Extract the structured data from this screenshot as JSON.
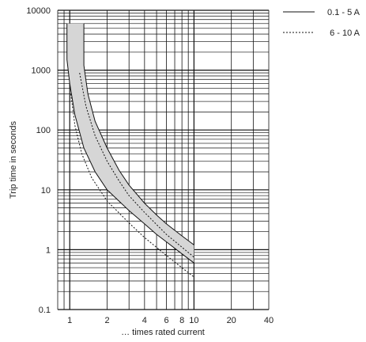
{
  "chart_data": {
    "type": "line",
    "title": "",
    "xlabel": "… times rated current",
    "ylabel": "Trip time in seconds",
    "x_scale": "log",
    "y_scale": "log",
    "xlim": [
      0.8,
      40
    ],
    "ylim": [
      0.1,
      10000
    ],
    "x_ticks": [
      {
        "value": 1,
        "label": "1"
      },
      {
        "value": 2,
        "label": "2"
      },
      {
        "value": 4,
        "label": "4"
      },
      {
        "value": 6,
        "label": "6"
      },
      {
        "value": 8,
        "label": "8"
      },
      {
        "value": 10,
        "label": "10"
      },
      {
        "value": 20,
        "label": "20"
      },
      {
        "value": 40,
        "label": "40"
      }
    ],
    "y_ticks": [
      {
        "value": 0.1,
        "label": "0.1"
      },
      {
        "value": 1,
        "label": "1"
      },
      {
        "value": 10,
        "label": "10"
      },
      {
        "value": 100,
        "label": "100"
      },
      {
        "value": 1000,
        "label": "1000"
      },
      {
        "value": 10000,
        "label": "10000"
      }
    ],
    "grid": true,
    "legend_position": "top-right",
    "band": {
      "fill": "#d6d6d6",
      "upper": [
        {
          "x": 1.3,
          "y": 6000
        },
        {
          "x": 1.3,
          "y": 1200
        },
        {
          "x": 1.4,
          "y": 400
        },
        {
          "x": 1.6,
          "y": 140
        },
        {
          "x": 2.0,
          "y": 50
        },
        {
          "x": 2.5,
          "y": 21
        },
        {
          "x": 3.0,
          "y": 12
        },
        {
          "x": 4.0,
          "y": 6
        },
        {
          "x": 5.0,
          "y": 3.8
        },
        {
          "x": 6.0,
          "y": 2.7
        },
        {
          "x": 8.0,
          "y": 1.7
        },
        {
          "x": 10.0,
          "y": 1.2
        }
      ],
      "lower": [
        {
          "x": 0.95,
          "y": 6000
        },
        {
          "x": 0.95,
          "y": 1500
        },
        {
          "x": 1.0,
          "y": 600
        },
        {
          "x": 1.1,
          "y": 180
        },
        {
          "x": 1.3,
          "y": 50
        },
        {
          "x": 1.6,
          "y": 20
        },
        {
          "x": 2.0,
          "y": 10
        },
        {
          "x": 3.0,
          "y": 4.5
        },
        {
          "x": 4.0,
          "y": 2.7
        },
        {
          "x": 5.0,
          "y": 1.8
        },
        {
          "x": 6.0,
          "y": 1.35
        },
        {
          "x": 8.0,
          "y": 0.85
        },
        {
          "x": 10.0,
          "y": 0.6
        }
      ]
    },
    "series": [
      {
        "name": "0.1 - 5 A",
        "style": "solid",
        "color": "#111111",
        "points": [
          {
            "x": 0.95,
            "y": 6000
          },
          {
            "x": 0.95,
            "y": 1500
          },
          {
            "x": 1.0,
            "y": 600
          },
          {
            "x": 1.1,
            "y": 180
          },
          {
            "x": 1.3,
            "y": 50
          },
          {
            "x": 1.6,
            "y": 20
          },
          {
            "x": 2.0,
            "y": 10
          },
          {
            "x": 3.0,
            "y": 4.5
          },
          {
            "x": 4.0,
            "y": 2.7
          },
          {
            "x": 5.0,
            "y": 1.8
          },
          {
            "x": 6.0,
            "y": 1.35
          },
          {
            "x": 8.0,
            "y": 0.85
          },
          {
            "x": 10.0,
            "y": 0.6
          }
        ],
        "upper_points": [
          {
            "x": 1.3,
            "y": 6000
          },
          {
            "x": 1.3,
            "y": 1200
          },
          {
            "x": 1.4,
            "y": 400
          },
          {
            "x": 1.6,
            "y": 140
          },
          {
            "x": 2.0,
            "y": 50
          },
          {
            "x": 2.5,
            "y": 21
          },
          {
            "x": 3.0,
            "y": 12
          },
          {
            "x": 4.0,
            "y": 6
          },
          {
            "x": 5.0,
            "y": 3.8
          },
          {
            "x": 6.0,
            "y": 2.7
          },
          {
            "x": 8.0,
            "y": 1.7
          },
          {
            "x": 10.0,
            "y": 1.2
          }
        ]
      },
      {
        "name": "6 - 10 A",
        "style": "dotted",
        "color": "#111111",
        "points": [
          {
            "x": 1.02,
            "y": 400
          },
          {
            "x": 1.1,
            "y": 120
          },
          {
            "x": 1.25,
            "y": 40
          },
          {
            "x": 1.5,
            "y": 16
          },
          {
            "x": 2.0,
            "y": 6.5
          },
          {
            "x": 3.0,
            "y": 2.8
          },
          {
            "x": 4.0,
            "y": 1.6
          },
          {
            "x": 6.0,
            "y": 0.8
          },
          {
            "x": 8.0,
            "y": 0.5
          },
          {
            "x": 10.0,
            "y": 0.35
          }
        ],
        "upper_points": [
          {
            "x": 1.2,
            "y": 900
          },
          {
            "x": 1.35,
            "y": 250
          },
          {
            "x": 1.6,
            "y": 80
          },
          {
            "x": 2.0,
            "y": 30
          },
          {
            "x": 2.5,
            "y": 14
          },
          {
            "x": 3.0,
            "y": 8
          },
          {
            "x": 4.0,
            "y": 4.2
          },
          {
            "x": 6.0,
            "y": 1.8
          },
          {
            "x": 8.0,
            "y": 1.1
          },
          {
            "x": 10.0,
            "y": 0.75
          }
        ]
      }
    ]
  },
  "colors": {
    "grid_major": "#111111",
    "grid_minor": "#333333",
    "band_fill": "#d6d6d6",
    "curve": "#111111"
  }
}
